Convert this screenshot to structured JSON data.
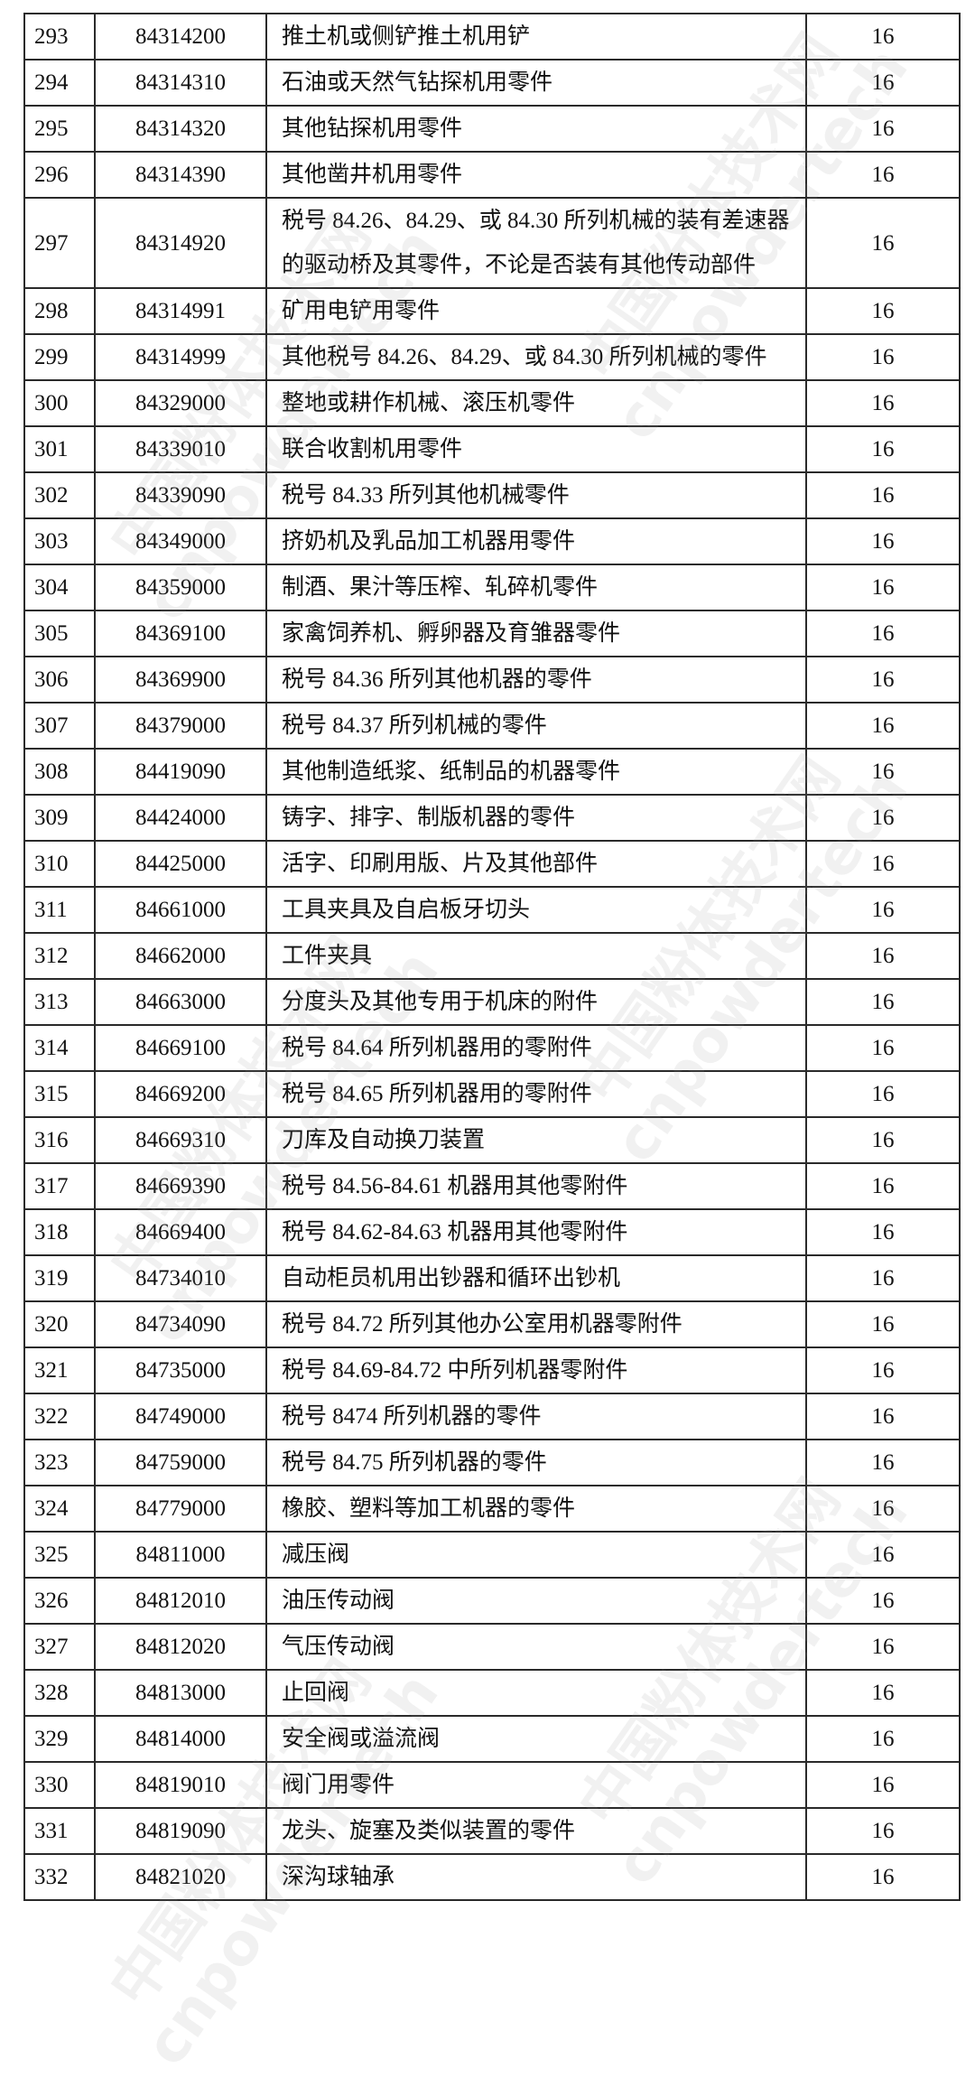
{
  "watermark": {
    "line1": "中国粉体技术网",
    "line2": "cnpowdertech"
  },
  "rows": [
    {
      "no": "293",
      "code": "84314200",
      "desc": "推土机或侧铲推土机用铲",
      "rate": "16"
    },
    {
      "no": "294",
      "code": "84314310",
      "desc": "石油或天然气钻探机用零件",
      "rate": "16"
    },
    {
      "no": "295",
      "code": "84314320",
      "desc": "其他钻探机用零件",
      "rate": "16"
    },
    {
      "no": "296",
      "code": "84314390",
      "desc": "其他凿井机用零件",
      "rate": "16"
    },
    {
      "no": "297",
      "code": "84314920",
      "desc": "税号 84.26、84.29、或 84.30 所列机械的装有差速器的驱动桥及其零件，不论是否装有其他传动部件",
      "rate": "16"
    },
    {
      "no": "298",
      "code": "84314991",
      "desc": "矿用电铲用零件",
      "rate": "16"
    },
    {
      "no": "299",
      "code": "84314999",
      "desc": "其他税号 84.26、84.29、或 84.30 所列机械的零件",
      "rate": "16"
    },
    {
      "no": "300",
      "code": "84329000",
      "desc": "整地或耕作机械、滚压机零件",
      "rate": "16"
    },
    {
      "no": "301",
      "code": "84339010",
      "desc": "联合收割机用零件",
      "rate": "16"
    },
    {
      "no": "302",
      "code": "84339090",
      "desc": "税号 84.33 所列其他机械零件",
      "rate": "16"
    },
    {
      "no": "303",
      "code": "84349000",
      "desc": "挤奶机及乳品加工机器用零件",
      "rate": "16"
    },
    {
      "no": "304",
      "code": "84359000",
      "desc": "制酒、果汁等压榨、轧碎机零件",
      "rate": "16"
    },
    {
      "no": "305",
      "code": "84369100",
      "desc": "家禽饲养机、孵卵器及育雏器零件",
      "rate": "16"
    },
    {
      "no": "306",
      "code": "84369900",
      "desc": "税号 84.36 所列其他机器的零件",
      "rate": "16"
    },
    {
      "no": "307",
      "code": "84379000",
      "desc": "税号 84.37 所列机械的零件",
      "rate": "16"
    },
    {
      "no": "308",
      "code": "84419090",
      "desc": "其他制造纸浆、纸制品的机器零件",
      "rate": "16"
    },
    {
      "no": "309",
      "code": "84424000",
      "desc": "铸字、排字、制版机器的零件",
      "rate": "16"
    },
    {
      "no": "310",
      "code": "84425000",
      "desc": "活字、印刷用版、片及其他部件",
      "rate": "16"
    },
    {
      "no": "311",
      "code": "84661000",
      "desc": "工具夹具及自启板牙切头",
      "rate": "16"
    },
    {
      "no": "312",
      "code": "84662000",
      "desc": "工件夹具",
      "rate": "16"
    },
    {
      "no": "313",
      "code": "84663000",
      "desc": "分度头及其他专用于机床的附件",
      "rate": "16"
    },
    {
      "no": "314",
      "code": "84669100",
      "desc": "税号 84.64 所列机器用的零附件",
      "rate": "16"
    },
    {
      "no": "315",
      "code": "84669200",
      "desc": "税号 84.65 所列机器用的零附件",
      "rate": "16"
    },
    {
      "no": "316",
      "code": "84669310",
      "desc": "刀库及自动换刀装置",
      "rate": "16"
    },
    {
      "no": "317",
      "code": "84669390",
      "desc": "税号 84.56-84.61 机器用其他零附件",
      "rate": "16"
    },
    {
      "no": "318",
      "code": "84669400",
      "desc": "税号 84.62-84.63 机器用其他零附件",
      "rate": "16"
    },
    {
      "no": "319",
      "code": "84734010",
      "desc": "自动柜员机用出钞器和循环出钞机",
      "rate": "16"
    },
    {
      "no": "320",
      "code": "84734090",
      "desc": "税号 84.72 所列其他办公室用机器零附件",
      "rate": "16"
    },
    {
      "no": "321",
      "code": "84735000",
      "desc": "税号 84.69-84.72 中所列机器零附件",
      "rate": "16"
    },
    {
      "no": "322",
      "code": "84749000",
      "desc": "税号 8474 所列机器的零件",
      "rate": "16"
    },
    {
      "no": "323",
      "code": "84759000",
      "desc": "税号 84.75 所列机器的零件",
      "rate": "16"
    },
    {
      "no": "324",
      "code": "84779000",
      "desc": "橡胶、塑料等加工机器的零件",
      "rate": "16"
    },
    {
      "no": "325",
      "code": "84811000",
      "desc": "减压阀",
      "rate": "16"
    },
    {
      "no": "326",
      "code": "84812010",
      "desc": "油压传动阀",
      "rate": "16"
    },
    {
      "no": "327",
      "code": "84812020",
      "desc": "气压传动阀",
      "rate": "16"
    },
    {
      "no": "328",
      "code": "84813000",
      "desc": "止回阀",
      "rate": "16"
    },
    {
      "no": "329",
      "code": "84814000",
      "desc": "安全阀或溢流阀",
      "rate": "16"
    },
    {
      "no": "330",
      "code": "84819010",
      "desc": "阀门用零件",
      "rate": "16"
    },
    {
      "no": "331",
      "code": "84819090",
      "desc": "龙头、旋塞及类似装置的零件",
      "rate": "16"
    },
    {
      "no": "332",
      "code": "84821020",
      "desc": "深沟球轴承",
      "rate": "16"
    }
  ]
}
